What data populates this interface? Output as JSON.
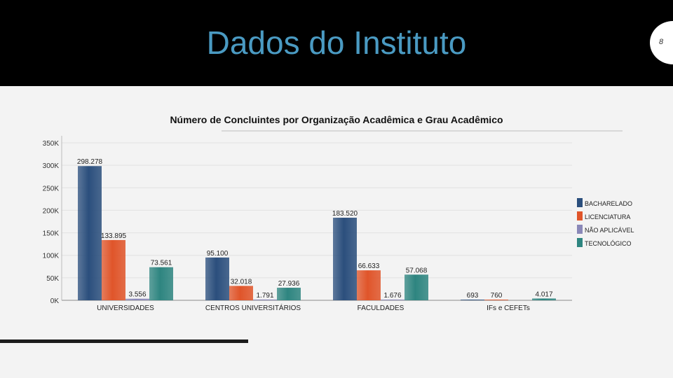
{
  "slide": {
    "title": "Dados do Instituto",
    "page_number": "8"
  },
  "chart_data": {
    "type": "bar",
    "title": "Número de Concluintes por Organização Acadêmica e Grau Acadêmico",
    "categories": [
      "UNIVERSIDADES",
      "CENTROS UNIVERSITÁRIOS",
      "FACULDADES",
      "IFs e CEFETs"
    ],
    "series": [
      {
        "name": "BACHARELADO",
        "values": [
          298278,
          95100,
          183520,
          693
        ],
        "labels": [
          "298.278",
          "95.100",
          "183.520",
          "693"
        ]
      },
      {
        "name": "LICENCIATURA",
        "values": [
          133895,
          32018,
          66633,
          760
        ],
        "labels": [
          "133.895",
          "32.018",
          "66.633",
          "760"
        ]
      },
      {
        "name": "NÃO APLICÁVEL",
        "values": [
          3556,
          1791,
          1676,
          0
        ],
        "labels": [
          "3.556",
          "1.791",
          "1.676",
          ""
        ]
      },
      {
        "name": "TECNOLÓGICO",
        "values": [
          73561,
          27936,
          57068,
          4017
        ],
        "labels": [
          "73.561",
          "27.936",
          "57.068",
          "4.017"
        ]
      }
    ],
    "yticks": [
      "0K",
      "50K",
      "100K",
      "150K",
      "200K",
      "250K",
      "300K",
      "350K"
    ],
    "ylim": [
      0,
      350000
    ],
    "grid": true,
    "legend": "right",
    "colors": [
      "#2b4f7d",
      "#e0552a",
      "#8a88b8",
      "#2e8580"
    ]
  }
}
